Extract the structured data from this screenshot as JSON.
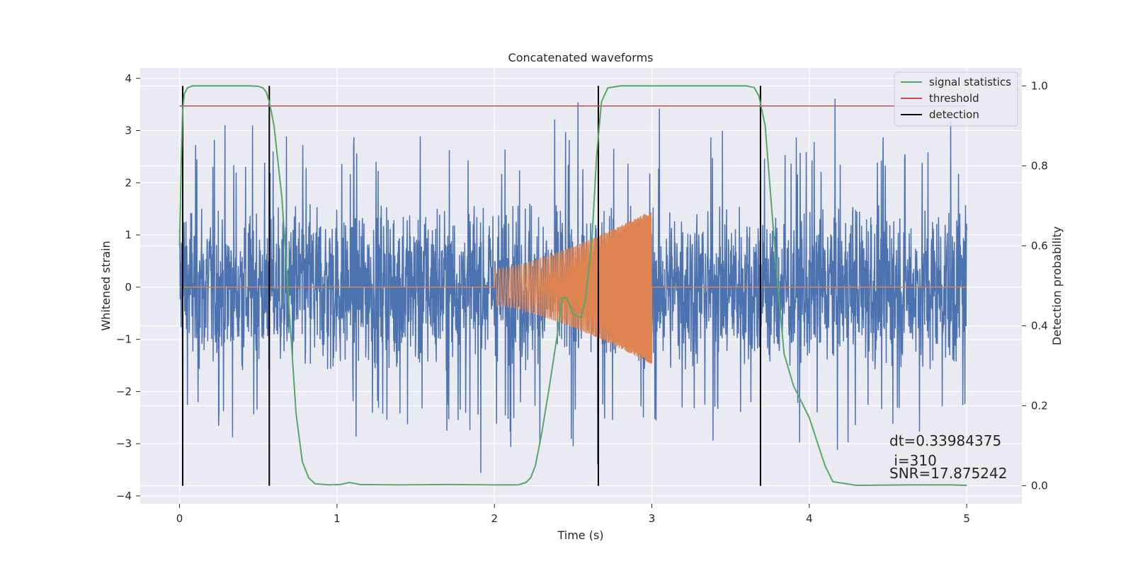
{
  "chart_data": {
    "type": "line",
    "title": "Concatenated waveforms",
    "xlabel": "Time (s)",
    "ylabel": "Whitened strain",
    "y2label": "Detection probability",
    "xlim": [
      -0.25,
      5.35
    ],
    "ylim": [
      -4.15,
      4.2
    ],
    "y2lim": [
      -0.045,
      1.045
    ],
    "xticks": [
      0,
      1,
      2,
      3,
      4,
      5
    ],
    "yticks": [
      -4,
      -3,
      -2,
      -1,
      0,
      1,
      2,
      3,
      4
    ],
    "y2ticks": [
      0.0,
      0.2,
      0.4,
      0.6,
      0.8,
      1.0
    ],
    "grid": true,
    "legend_position": "top-right",
    "series": [
      {
        "name": "",
        "kind": "noisy-strain",
        "axis": "left",
        "x_range": [
          0,
          5
        ],
        "approx_envelope": [
          -3.8,
          3.75
        ],
        "color": "#4c72b0"
      },
      {
        "name": "",
        "kind": "injected-chirp",
        "axis": "left",
        "x_range": [
          0,
          5
        ],
        "chirp_start": 2.0,
        "chirp_end": 3.0,
        "amplitude_start": 0.35,
        "amplitude_end": 1.48,
        "color": "#dd8452"
      },
      {
        "name": "signal statistics",
        "axis": "right",
        "color": "#55a868",
        "x": [
          0,
          0.01,
          0.02,
          0.03,
          0.05,
          0.08,
          0.15,
          0.3,
          0.45,
          0.5,
          0.53,
          0.55,
          0.57,
          0.6,
          0.65,
          0.7,
          0.74,
          0.78,
          0.82,
          0.86,
          0.95,
          1.02,
          1.08,
          1.15,
          1.4,
          1.7,
          2.0,
          2.15,
          2.2,
          2.23,
          2.26,
          2.3,
          2.35,
          2.4,
          2.43,
          2.46,
          2.5,
          2.55,
          2.58,
          2.62,
          2.65,
          2.68,
          2.72,
          2.8,
          3.0,
          3.3,
          3.6,
          3.65,
          3.68,
          3.72,
          3.76,
          3.8,
          3.84,
          3.9,
          3.95,
          4.0,
          4.05,
          4.1,
          4.15,
          4.3,
          4.6,
          4.9,
          5.0
        ],
        "y": [
          0.6,
          0.8,
          0.94,
          0.98,
          0.995,
          1.0,
          1.0,
          1.0,
          1.0,
          0.999,
          0.995,
          0.985,
          0.96,
          0.9,
          0.72,
          0.42,
          0.18,
          0.06,
          0.02,
          0.005,
          0.002,
          0.003,
          0.008,
          0.003,
          0.002,
          0.003,
          0.002,
          0.002,
          0.008,
          0.02,
          0.05,
          0.13,
          0.25,
          0.38,
          0.47,
          0.47,
          0.43,
          0.42,
          0.47,
          0.62,
          0.83,
          0.96,
          0.995,
          1.0,
          1.0,
          1.0,
          1.0,
          0.996,
          0.975,
          0.9,
          0.7,
          0.5,
          0.33,
          0.25,
          0.21,
          0.17,
          0.11,
          0.05,
          0.01,
          0.001,
          0.002,
          0.002,
          0.001
        ]
      },
      {
        "name": "threshold",
        "axis": "right",
        "color": "#c44e52",
        "x": [
          0,
          5
        ],
        "y": [
          0.95,
          0.95
        ]
      },
      {
        "name": "detection",
        "axis": "right",
        "color": "#000000",
        "vlines": [
          0.02,
          0.57,
          2.66,
          3.69
        ],
        "ymin": 0.0,
        "ymax": 1.0
      }
    ],
    "annotations": [
      "dt=0.33984375",
      " i=310",
      "SNR=17.875242"
    ]
  }
}
